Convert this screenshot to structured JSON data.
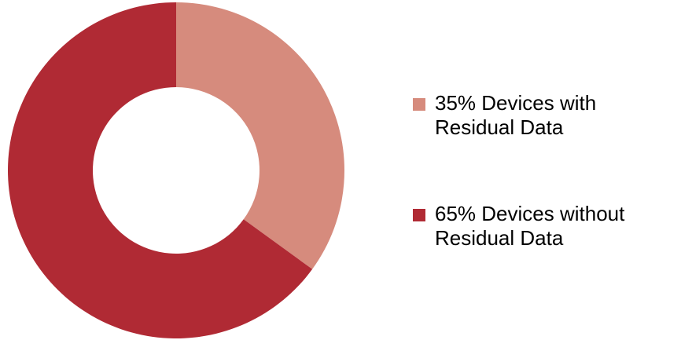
{
  "chart_data": {
    "type": "pie",
    "title": "",
    "donut": true,
    "start_angle_deg": 0,
    "direction": "clockwise",
    "legend_position": "right",
    "series": [
      {
        "values": [
          35,
          65
        ],
        "categories": [
          "Devices with Residual Data",
          "Devices without Residual Data"
        ],
        "colors": [
          "#d68b7d",
          "#b02a34"
        ]
      }
    ],
    "legend": [
      {
        "line1": "35% Devices with",
        "line2": "Residual Data",
        "color": "#d68b7d"
      },
      {
        "line1": "65% Devices without",
        "line2": "Residual Data",
        "color": "#b02a34"
      }
    ]
  }
}
